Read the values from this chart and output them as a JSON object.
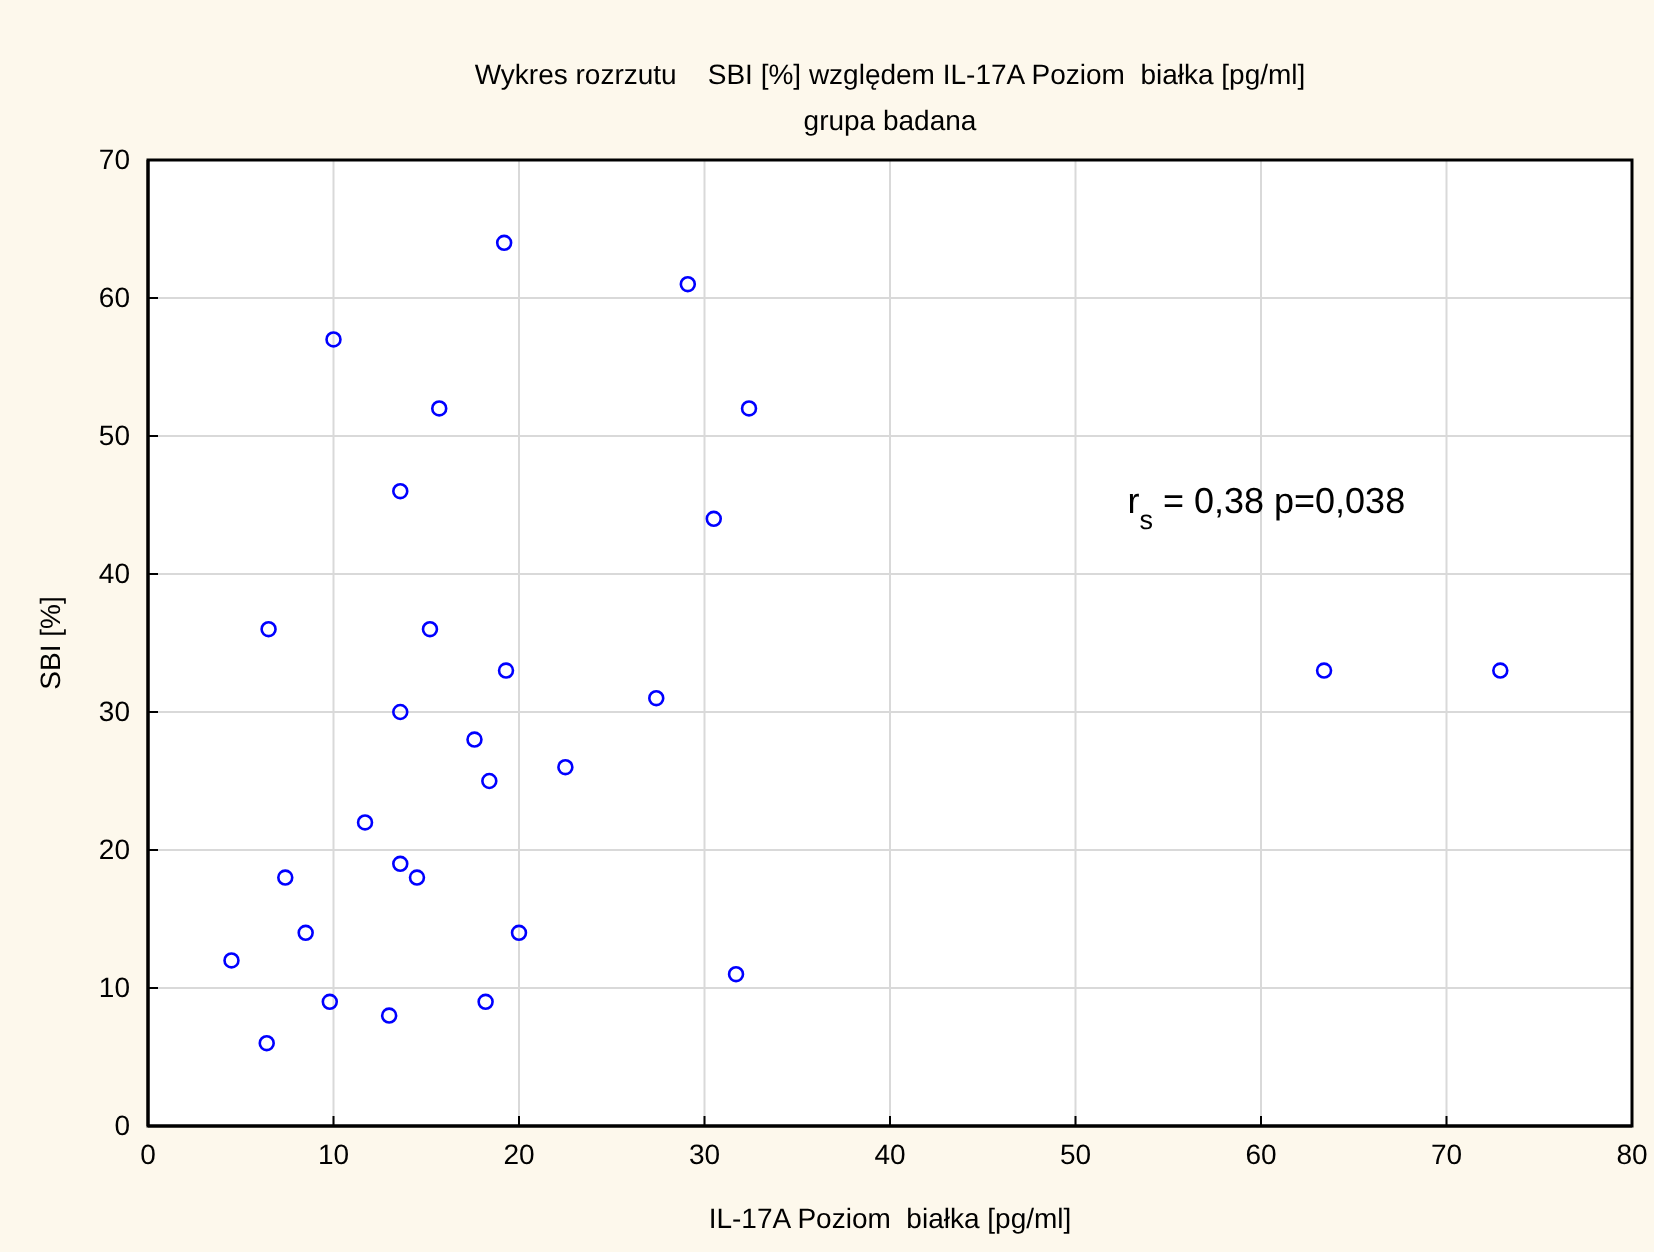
{
  "chart_data": {
    "type": "scatter",
    "title": "Wykres rozrzutu    SBI [%] względem IL-17A Poziom  białka [pg/ml]",
    "subtitle": "grupa badana",
    "xlabel": "IL-17A Poziom  białka [pg/ml]",
    "ylabel": "SBI [%]",
    "annotations": [
      "r$_{s}$ = 0,38 p=0,038"
    ],
    "series": [
      {
        "color": "#0000ff",
        "x": [
          19.2,
          29.1,
          10,
          15.7,
          32.4,
          13.6,
          30.5,
          6.5,
          15.2,
          19.3,
          13.6,
          27.4,
          17.6,
          18.4,
          22.5,
          11.7,
          13.6,
          14.5,
          7.4,
          8.5,
          20.0,
          4.5,
          9.8,
          13.0,
          18.2,
          6.4,
          31.7,
          63.4,
          72.9
        ],
        "values": [
          64,
          61,
          57,
          52,
          52,
          46,
          44,
          36,
          36,
          33,
          30,
          31,
          28,
          25,
          26,
          22,
          19,
          18,
          18,
          14,
          14,
          12,
          9,
          8,
          9,
          6,
          11,
          33,
          33
        ]
      }
    ],
    "xlim": [
      0,
      80
    ],
    "xticks": [
      0,
      10,
      20,
      30,
      40,
      50,
      60,
      70,
      80
    ],
    "ylim": [
      0,
      70
    ],
    "yticks": [
      0,
      10,
      20,
      30,
      40,
      50,
      60,
      70
    ],
    "grid": true,
    "marker": "circle"
  }
}
